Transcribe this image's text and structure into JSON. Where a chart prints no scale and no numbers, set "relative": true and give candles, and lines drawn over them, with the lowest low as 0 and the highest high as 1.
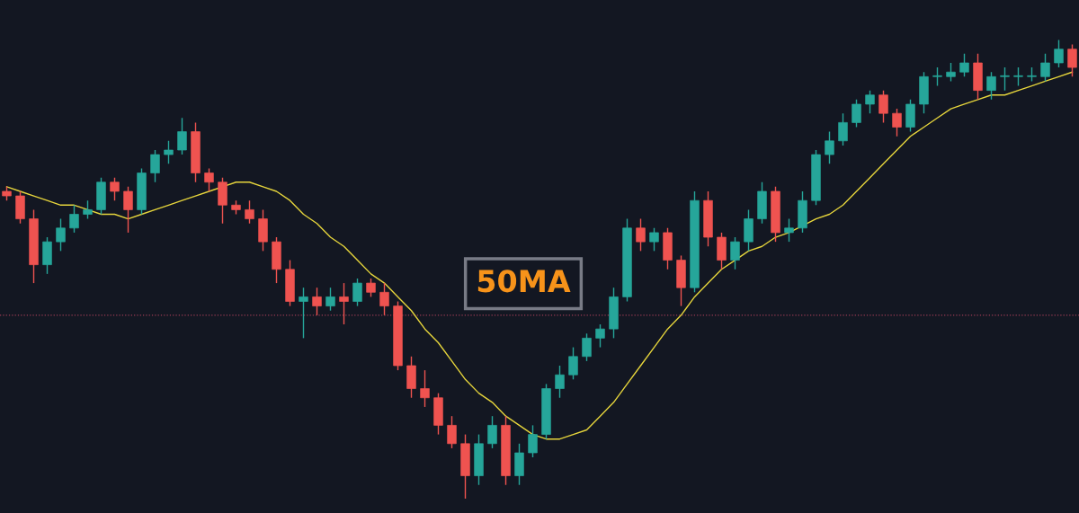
{
  "chart_data": {
    "type": "candlestick",
    "relative": true,
    "categories": [
      null,
      null,
      null,
      null,
      null,
      null,
      null,
      null,
      null,
      null,
      null,
      null,
      null,
      null,
      null,
      null,
      null,
      null,
      null,
      null,
      null,
      null,
      null,
      null,
      null,
      null,
      null,
      null,
      null,
      null,
      null,
      null,
      null,
      null,
      null,
      null,
      null,
      null,
      null,
      null,
      null,
      null,
      null,
      null,
      null,
      null,
      null,
      null,
      null,
      null,
      null,
      null,
      null,
      null,
      null,
      null,
      null,
      null,
      null,
      null,
      null,
      null,
      null,
      null,
      null,
      null,
      null,
      null,
      null,
      null,
      null,
      null,
      null,
      null,
      null,
      null,
      null,
      null,
      null,
      null
    ],
    "ohlc": [
      [
        0.67,
        0.68,
        0.65,
        0.66
      ],
      [
        0.66,
        0.67,
        0.6,
        0.61
      ],
      [
        0.61,
        0.63,
        0.47,
        0.51
      ],
      [
        0.51,
        0.57,
        0.49,
        0.56
      ],
      [
        0.56,
        0.61,
        0.54,
        0.59
      ],
      [
        0.59,
        0.64,
        0.58,
        0.62
      ],
      [
        0.62,
        0.65,
        0.61,
        0.63
      ],
      [
        0.63,
        0.7,
        0.62,
        0.69
      ],
      [
        0.69,
        0.7,
        0.65,
        0.67
      ],
      [
        0.67,
        0.68,
        0.58,
        0.63
      ],
      [
        0.63,
        0.72,
        0.62,
        0.71
      ],
      [
        0.71,
        0.76,
        0.69,
        0.75
      ],
      [
        0.75,
        0.78,
        0.73,
        0.76
      ],
      [
        0.76,
        0.83,
        0.75,
        0.8
      ],
      [
        0.8,
        0.82,
        0.69,
        0.71
      ],
      [
        0.71,
        0.72,
        0.67,
        0.69
      ],
      [
        0.69,
        0.7,
        0.6,
        0.64
      ],
      [
        0.64,
        0.65,
        0.62,
        0.63
      ],
      [
        0.63,
        0.65,
        0.6,
        0.61
      ],
      [
        0.61,
        0.63,
        0.54,
        0.56
      ],
      [
        0.56,
        0.57,
        0.47,
        0.5
      ],
      [
        0.5,
        0.52,
        0.42,
        0.43
      ],
      [
        0.43,
        0.46,
        0.35,
        0.44
      ],
      [
        0.44,
        0.46,
        0.4,
        0.42
      ],
      [
        0.42,
        0.46,
        0.41,
        0.44
      ],
      [
        0.44,
        0.47,
        0.38,
        0.43
      ],
      [
        0.43,
        0.48,
        0.42,
        0.47
      ],
      [
        0.47,
        0.48,
        0.44,
        0.45
      ],
      [
        0.45,
        0.47,
        0.4,
        0.42
      ],
      [
        0.42,
        0.43,
        0.28,
        0.29
      ],
      [
        0.29,
        0.31,
        0.22,
        0.24
      ],
      [
        0.24,
        0.28,
        0.2,
        0.22
      ],
      [
        0.22,
        0.23,
        0.14,
        0.16
      ],
      [
        0.16,
        0.18,
        0.11,
        0.12
      ],
      [
        0.12,
        0.14,
        0.0,
        0.05
      ],
      [
        0.05,
        0.14,
        0.03,
        0.12
      ],
      [
        0.12,
        0.18,
        0.11,
        0.16
      ],
      [
        0.16,
        0.18,
        0.03,
        0.05
      ],
      [
        0.05,
        0.12,
        0.03,
        0.1
      ],
      [
        0.1,
        0.16,
        0.09,
        0.14
      ],
      [
        0.14,
        0.25,
        0.13,
        0.24
      ],
      [
        0.24,
        0.29,
        0.22,
        0.27
      ],
      [
        0.27,
        0.33,
        0.26,
        0.31
      ],
      [
        0.31,
        0.36,
        0.3,
        0.35
      ],
      [
        0.35,
        0.38,
        0.33,
        0.37
      ],
      [
        0.37,
        0.46,
        0.35,
        0.44
      ],
      [
        0.44,
        0.61,
        0.43,
        0.59
      ],
      [
        0.59,
        0.61,
        0.54,
        0.56
      ],
      [
        0.56,
        0.59,
        0.54,
        0.58
      ],
      [
        0.58,
        0.59,
        0.5,
        0.52
      ],
      [
        0.52,
        0.53,
        0.42,
        0.46
      ],
      [
        0.46,
        0.67,
        0.45,
        0.65
      ],
      [
        0.65,
        0.67,
        0.55,
        0.57
      ],
      [
        0.57,
        0.58,
        0.5,
        0.52
      ],
      [
        0.52,
        0.57,
        0.5,
        0.56
      ],
      [
        0.56,
        0.63,
        0.54,
        0.61
      ],
      [
        0.61,
        0.69,
        0.6,
        0.67
      ],
      [
        0.67,
        0.68,
        0.56,
        0.58
      ],
      [
        0.58,
        0.61,
        0.56,
        0.59
      ],
      [
        0.59,
        0.67,
        0.58,
        0.65
      ],
      [
        0.65,
        0.76,
        0.64,
        0.75
      ],
      [
        0.75,
        0.8,
        0.73,
        0.78
      ],
      [
        0.78,
        0.84,
        0.77,
        0.82
      ],
      [
        0.82,
        0.87,
        0.81,
        0.86
      ],
      [
        0.86,
        0.89,
        0.84,
        0.88
      ],
      [
        0.88,
        0.89,
        0.82,
        0.84
      ],
      [
        0.84,
        0.85,
        0.79,
        0.81
      ],
      [
        0.81,
        0.87,
        0.8,
        0.86
      ],
      [
        0.86,
        0.93,
        0.84,
        0.92
      ],
      [
        0.92,
        0.94,
        0.9,
        0.92
      ],
      [
        0.92,
        0.95,
        0.91,
        0.93
      ],
      [
        0.93,
        0.97,
        0.92,
        0.95
      ],
      [
        0.95,
        0.97,
        0.87,
        0.89
      ],
      [
        0.89,
        0.93,
        0.87,
        0.92
      ],
      [
        0.92,
        0.94,
        0.89,
        0.92
      ],
      [
        0.92,
        0.94,
        0.9,
        0.92
      ],
      [
        0.92,
        0.94,
        0.91,
        0.92
      ],
      [
        0.92,
        0.97,
        0.91,
        0.95
      ],
      [
        0.95,
        1.0,
        0.94,
        0.98
      ],
      [
        0.98,
        0.99,
        0.92,
        0.94
      ]
    ],
    "colors": [
      "#ef5350",
      "#ef5350",
      "#ef5350",
      "#26a69a",
      "#26a69a",
      "#26a69a",
      "#26a69a",
      "#26a69a",
      "#ef5350",
      "#ef5350",
      "#26a69a",
      "#26a69a",
      "#26a69a",
      "#26a69a",
      "#ef5350",
      "#ef5350",
      "#ef5350",
      "#ef5350",
      "#ef5350",
      "#ef5350",
      "#ef5350",
      "#ef5350",
      "#26a69a",
      "#ef5350",
      "#26a69a",
      "#ef5350",
      "#26a69a",
      "#ef5350",
      "#ef5350",
      "#ef5350",
      "#ef5350",
      "#ef5350",
      "#ef5350",
      "#ef5350",
      "#ef5350",
      "#26a69a",
      "#26a69a",
      "#ef5350",
      "#26a69a",
      "#26a69a",
      "#26a69a",
      "#26a69a",
      "#26a69a",
      "#26a69a",
      "#26a69a",
      "#26a69a",
      "#26a69a",
      "#ef5350",
      "#26a69a",
      "#ef5350",
      "#ef5350",
      "#26a69a",
      "#ef5350",
      "#ef5350",
      "#26a69a",
      "#26a69a",
      "#26a69a",
      "#ef5350",
      "#26a69a",
      "#26a69a",
      "#26a69a",
      "#26a69a",
      "#26a69a",
      "#26a69a",
      "#26a69a",
      "#ef5350",
      "#ef5350",
      "#26a69a",
      "#26a69a",
      "#26a69a",
      "#26a69a",
      "#26a69a",
      "#ef5350",
      "#26a69a",
      "#26a69a",
      "#26a69a",
      "#26a69a",
      "#26a69a",
      "#26a69a",
      "#ef5350"
    ],
    "series": [
      {
        "type": "line",
        "color": "#e6d53c",
        "values": [
          0.68,
          0.67,
          0.66,
          0.65,
          0.64,
          0.64,
          0.63,
          0.62,
          0.62,
          0.61,
          0.62,
          0.63,
          0.64,
          0.65,
          0.66,
          0.67,
          null,
          0.69,
          0.69,
          0.68,
          0.67,
          0.65,
          0.62,
          0.6,
          0.57,
          0.55,
          0.52,
          0.49,
          0.47,
          0.44,
          0.41,
          0.37,
          0.34,
          0.3,
          0.26,
          0.23,
          0.21,
          0.18,
          0.16,
          0.14,
          0.13,
          0.13,
          0.14,
          0.15,
          0.18,
          0.21,
          0.25,
          0.29,
          0.33,
          0.37,
          0.4,
          0.44,
          0.47,
          0.5,
          0.52,
          0.54,
          0.55,
          0.57,
          0.58,
          null,
          0.61,
          0.62,
          0.64,
          0.67,
          0.7,
          0.73,
          0.76,
          0.79,
          0.81,
          0.83,
          0.85,
          0.86,
          0.87,
          0.88,
          0.88,
          0.89,
          0.9,
          0.91,
          0.92,
          0.93
        ]
      }
    ],
    "ref_lines": [
      {
        "axis": "y",
        "value": 0.4,
        "color": "#9c3d55",
        "line_style": "dotted"
      }
    ],
    "annotations": [
      "50MA"
    ]
  }
}
